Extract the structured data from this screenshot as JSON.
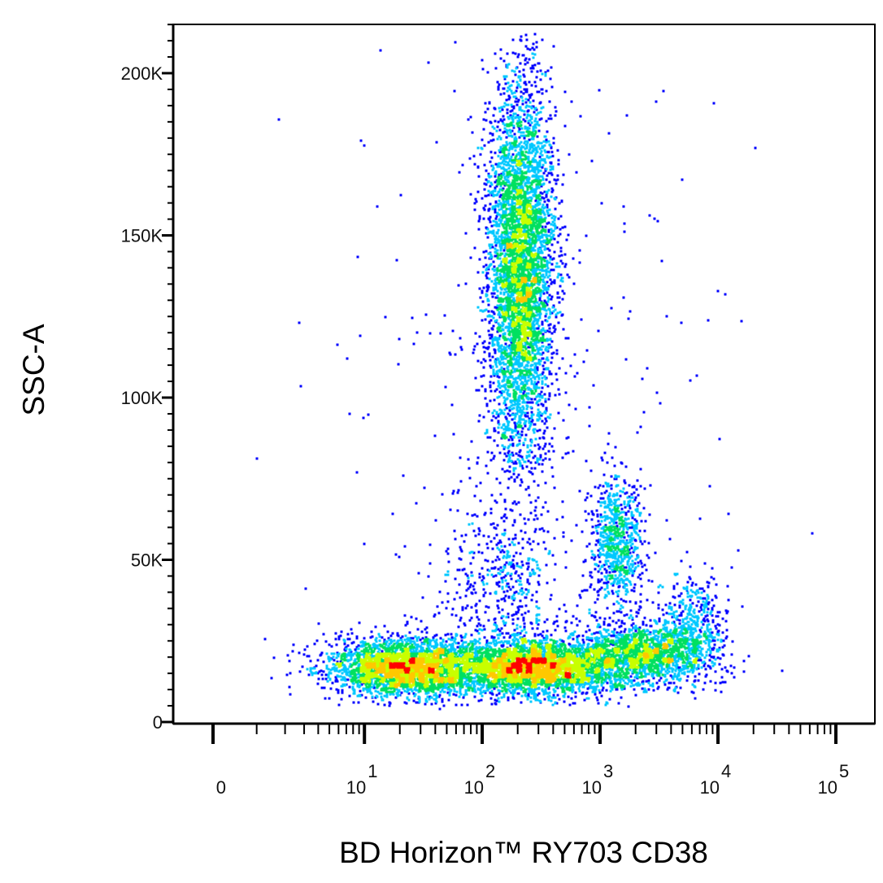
{
  "chart_data": {
    "type": "scatter",
    "subtype": "density-colored flow cytometry dot plot",
    "xlabel": "BD Horizon™ RY703 CD38",
    "ylabel": "SSC-A",
    "x_scale": "biexponential",
    "xlim": [
      0,
      100000
    ],
    "ylim": [
      0,
      215000
    ],
    "x_ticks": [
      {
        "value": 0,
        "base": "0",
        "exp": ""
      },
      {
        "value": 10,
        "base": "10",
        "exp": "1"
      },
      {
        "value": 100,
        "base": "10",
        "exp": "2"
      },
      {
        "value": 1000,
        "base": "10",
        "exp": "3"
      },
      {
        "value": 10000,
        "base": "10",
        "exp": "4"
      },
      {
        "value": 100000,
        "base": "10",
        "exp": "5"
      }
    ],
    "y_ticks": [
      {
        "value": 0,
        "label": "0"
      },
      {
        "value": 50000,
        "label": "50K"
      },
      {
        "value": 100000,
        "label": "100K"
      },
      {
        "value": 150000,
        "label": "150K"
      },
      {
        "value": 200000,
        "label": "200K"
      }
    ],
    "grid": false,
    "legend": "none",
    "density_colors": [
      "#0000ff",
      "#00c8ff",
      "#00e060",
      "#c8ff00",
      "#ffc800",
      "#ff0000"
    ],
    "populations": [
      {
        "x_center": 210,
        "x_sd_decades": 0.14,
        "y_center": 140000,
        "y_sd": 30000,
        "y_range": [
          72000,
          212000
        ],
        "n": 4800
      },
      {
        "x_center": 22,
        "x_sd_decades": 0.32,
        "y_center": 17000,
        "y_sd": 4500,
        "y_range": [
          5000,
          35000
        ],
        "n": 3000
      },
      {
        "x_center": 280,
        "x_sd_decades": 0.38,
        "y_center": 17000,
        "y_sd": 4500,
        "y_range": [
          5000,
          38000
        ],
        "n": 3600
      },
      {
        "x_center": 2500,
        "x_sd_decades": 0.28,
        "y_center": 21000,
        "y_sd": 5000,
        "y_range": [
          8000,
          40000
        ],
        "n": 1500
      },
      {
        "x_center": 1400,
        "x_sd_decades": 0.11,
        "y_center": 55000,
        "y_sd": 10000,
        "y_range": [
          30000,
          88000
        ],
        "n": 800
      },
      {
        "x_center": 6000,
        "x_sd_decades": 0.14,
        "y_center": 30000,
        "y_sd": 8000,
        "y_range": [
          12000,
          60000
        ],
        "n": 450
      },
      {
        "x_center": 150,
        "x_sd_decades": 0.25,
        "y_center": 45000,
        "y_sd": 15000,
        "y_range": [
          25000,
          90000
        ],
        "n": 500
      },
      {
        "x_center": 300,
        "x_sd_decades": 0.9,
        "y_center": 100000,
        "y_sd": 55000,
        "y_range": [
          0,
          212000
        ],
        "n": 250
      }
    ]
  }
}
